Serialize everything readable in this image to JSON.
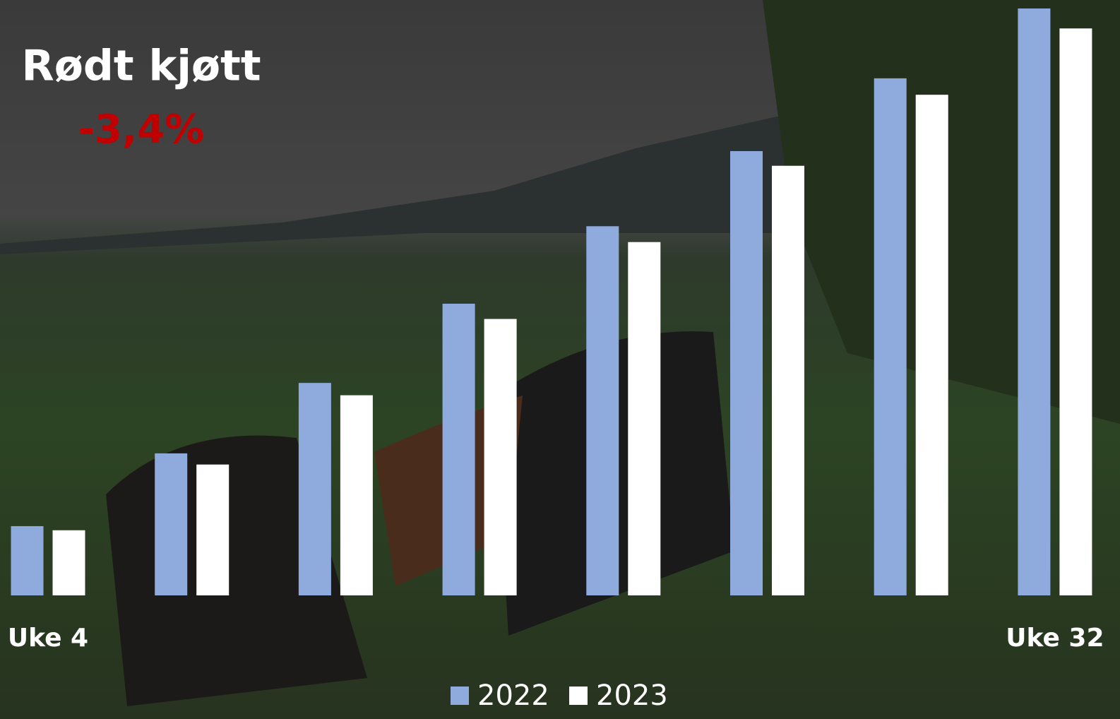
{
  "chart_data": {
    "type": "bar",
    "title": "Rødt kjøtt",
    "subtitle": "-3,4%",
    "categories": [
      "Uke 4",
      null,
      null,
      null,
      null,
      null,
      null,
      "Uke 32"
    ],
    "series": [
      {
        "name": "2022",
        "color": "#8faadc",
        "values": [
          11.8,
          24.2,
          36.2,
          49.7,
          62.9,
          75.7,
          88.1,
          100
        ]
      },
      {
        "name": "2023",
        "color": "#ffffff",
        "values": [
          11.1,
          22.3,
          34.1,
          47.1,
          60.2,
          73.2,
          85.3,
          96.6
        ]
      }
    ],
    "ylim": [
      0,
      100
    ],
    "grid": false
  }
}
